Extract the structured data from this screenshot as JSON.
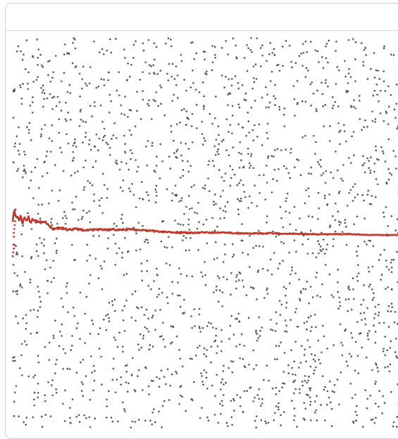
{
  "card": {
    "title": ""
  },
  "colors": {
    "points": "#555555",
    "estimate": "#c0392b",
    "border": "#cfcfcf"
  },
  "chart_data": {
    "type": "scatter",
    "title": "",
    "xlabel": "",
    "ylabel": "",
    "grid": false,
    "legend": "none",
    "xlim": [
      0,
      1
    ],
    "ylim": [
      0,
      1
    ],
    "series": [
      {
        "kind": "random-points",
        "count": 2000,
        "seed": 12345,
        "color": "#555555"
      },
      {
        "kind": "running-estimate-line",
        "converges_to": 0.5,
        "color": "#c0392b",
        "x": [
          0.0,
          0.004,
          0.008,
          0.012,
          0.016,
          0.02,
          0.025,
          0.03,
          0.035,
          0.04,
          0.045,
          0.05,
          0.06,
          0.07,
          0.08,
          0.09,
          0.1,
          0.12,
          0.14,
          0.16,
          0.18,
          0.2,
          0.25,
          0.3,
          0.35,
          0.4,
          0.45,
          0.5,
          0.55,
          0.6,
          0.65,
          0.7,
          0.75,
          0.8,
          0.85,
          0.9,
          0.95,
          1.0
        ],
        "y": [
          0.53,
          0.56,
          0.54,
          0.545,
          0.53,
          0.545,
          0.525,
          0.54,
          0.53,
          0.54,
          0.525,
          0.535,
          0.53,
          0.525,
          0.53,
          0.52,
          0.51,
          0.513,
          0.508,
          0.51,
          0.507,
          0.508,
          0.508,
          0.509,
          0.505,
          0.502,
          0.5,
          0.501,
          0.5,
          0.498,
          0.499,
          0.498,
          0.497,
          0.496,
          0.497,
          0.495,
          0.494,
          0.495
        ]
      },
      {
        "kind": "early-estimate-points",
        "color": "#c0392b",
        "x": [
          0.0,
          0.002,
          0.003,
          0.004,
          0.005,
          0.006,
          0.007,
          0.001,
          0.0015,
          0.0025,
          0.003,
          0.0035
        ],
        "y": [
          0.44,
          0.47,
          0.49,
          0.51,
          0.52,
          0.53,
          0.56,
          0.35,
          0.45,
          0.5,
          0.46,
          0.03
        ]
      }
    ]
  }
}
